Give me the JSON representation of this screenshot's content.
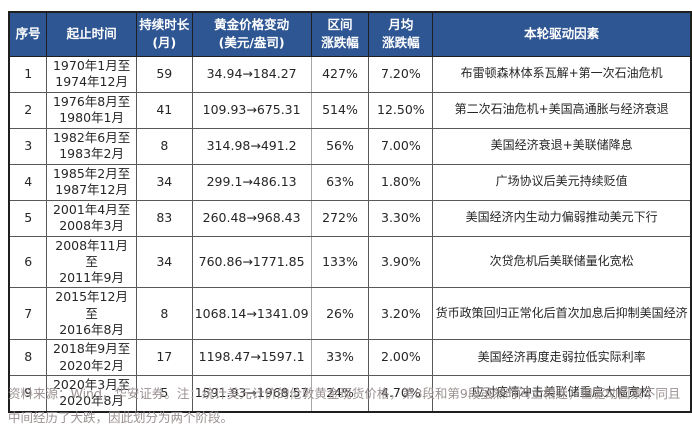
{
  "table": {
    "column_keys": [
      "no",
      "period",
      "duration",
      "price_change",
      "range_change",
      "monthly_change",
      "driver"
    ],
    "headers": [
      "序号",
      "起止时间",
      "持续时长\n(月)",
      "黄金价格变动\n(美元/盎司)",
      "区间\n涨跌幅",
      "月均\n涨跌幅",
      "本轮驱动因素"
    ],
    "rows": [
      [
        "1",
        "1970年1月至\n1974年12月",
        "59",
        "34.94→184.27",
        "427%",
        "7.20%",
        "布雷顿森林体系瓦解+第一次石油危机"
      ],
      [
        "2",
        "1976年8月至\n1980年1月",
        "41",
        "109.93→675.31",
        "514%",
        "12.50%",
        "第二次石油危机+美国高通胀与经济衰退"
      ],
      [
        "3",
        "1982年6月至\n1983年2月",
        "8",
        "314.98→491.2",
        "56%",
        "7.00%",
        "美国经济衰退+美联储降息"
      ],
      [
        "4",
        "1985年2月至\n1987年12月",
        "34",
        "299.1→486.13",
        "63%",
        "1.80%",
        "广场协议后美元持续贬值"
      ],
      [
        "5",
        "2001年4月至\n2008年3月",
        "83",
        "260.48→968.43",
        "272%",
        "3.30%",
        "美国经济内生动力偏弱推动美元下行"
      ],
      [
        "6",
        "2008年11月至\n2011年9月",
        "34",
        "760.86→1771.85",
        "133%",
        "3.90%",
        "次贷危机后美联储量化宽松"
      ],
      [
        "7",
        "2015年12月至\n2016年8月",
        "8",
        "1068.14→1341.09",
        "26%",
        "3.20%",
        "货币政策回归正常化后首次加息后抑制美国经济"
      ],
      [
        "8",
        "2018年9月至\n2020年2月",
        "17",
        "1198.47→1597.1",
        "33%",
        "2.00%",
        "美国经济再度走弱拉低实际利率"
      ],
      [
        "9",
        "2020年3月至\n2020年8月",
        "5",
        "1591.93→1968.57",
        "24%",
        "4.70%",
        "应对疫情冲击美联储重启大幅宽松"
      ]
    ]
  },
  "footnote": {
    "line1": "资料来源：Wind，华安证券。注：统计美元计价的伦敦黄金现货价格，第8段和第9段虽然时间上相连，但驱动因素不同且",
    "line2": "中间经历了大跌，因此划分为两个阶段。"
  },
  "colors": {
    "header_bg": "#2e5693",
    "header_text": "#ffffff",
    "body_text": "#262626",
    "footnote_text": "#9b9191",
    "border_dark": "#1f1f1f",
    "border_inner": "#595959",
    "border_light": "#a6a6a6"
  }
}
